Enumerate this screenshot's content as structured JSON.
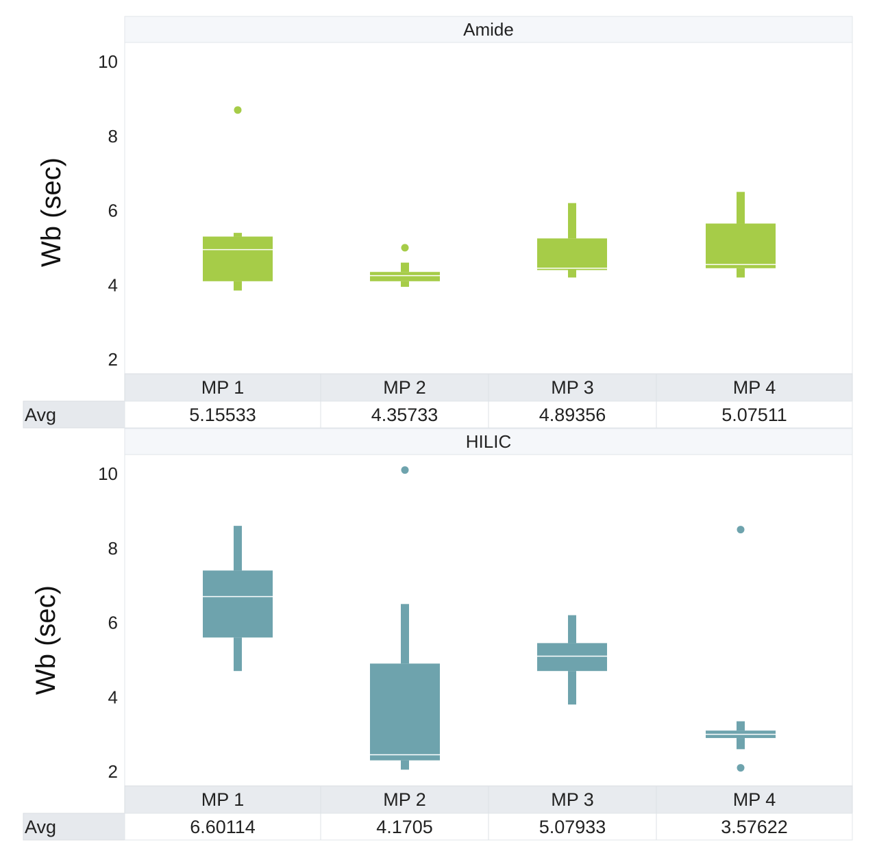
{
  "chart_data": [
    {
      "type": "box",
      "title": "Amide",
      "ylabel": "Wb (sec)",
      "ylim": [
        1.8,
        10.6
      ],
      "yticks": [
        2,
        4,
        6,
        8,
        10
      ],
      "color": "#a6cc48",
      "categories": [
        "MP 1",
        "MP 2",
        "MP 3",
        "MP 4"
      ],
      "avg_label": "Avg",
      "avg_values": [
        "5.15533",
        "4.35733",
        "4.89356",
        "5.07511"
      ],
      "boxes": [
        {
          "whisker_low": 3.85,
          "q1": 4.1,
          "median": 4.95,
          "q3": 5.3,
          "whisker_high": 5.4,
          "outliers": [
            8.7
          ]
        },
        {
          "whisker_low": 3.95,
          "q1": 4.1,
          "median": 4.25,
          "q3": 4.35,
          "whisker_high": 4.6,
          "outliers": [
            5.0
          ]
        },
        {
          "whisker_low": 4.2,
          "q1": 4.4,
          "median": 4.45,
          "q3": 5.25,
          "whisker_high": 6.2,
          "outliers": []
        },
        {
          "whisker_low": 4.2,
          "q1": 4.45,
          "median": 4.55,
          "q3": 5.65,
          "whisker_high": 6.5,
          "outliers": []
        }
      ]
    },
    {
      "type": "box",
      "title": "HILIC",
      "ylabel": "Wb (sec)",
      "ylim": [
        1.8,
        10.6
      ],
      "yticks": [
        2,
        4,
        6,
        8,
        10
      ],
      "color": "#6ea3ad",
      "categories": [
        "MP 1",
        "MP 2",
        "MP 3",
        "MP 4"
      ],
      "avg_label": "Avg",
      "avg_values": [
        "6.60114",
        "4.1705",
        "5.07933",
        "3.57622"
      ],
      "boxes": [
        {
          "whisker_low": 4.7,
          "q1": 5.6,
          "median": 6.7,
          "q3": 7.4,
          "whisker_high": 8.6,
          "outliers": []
        },
        {
          "whisker_low": 2.05,
          "q1": 2.3,
          "median": 2.45,
          "q3": 4.9,
          "whisker_high": 6.5,
          "outliers": [
            10.1
          ]
        },
        {
          "whisker_low": 3.8,
          "q1": 4.7,
          "median": 5.1,
          "q3": 5.45,
          "whisker_high": 6.2,
          "outliers": []
        },
        {
          "whisker_low": 2.6,
          "q1": 2.9,
          "median": 3.0,
          "q3": 3.1,
          "whisker_high": 3.35,
          "outliers": [
            8.5,
            2.1
          ]
        }
      ]
    }
  ]
}
